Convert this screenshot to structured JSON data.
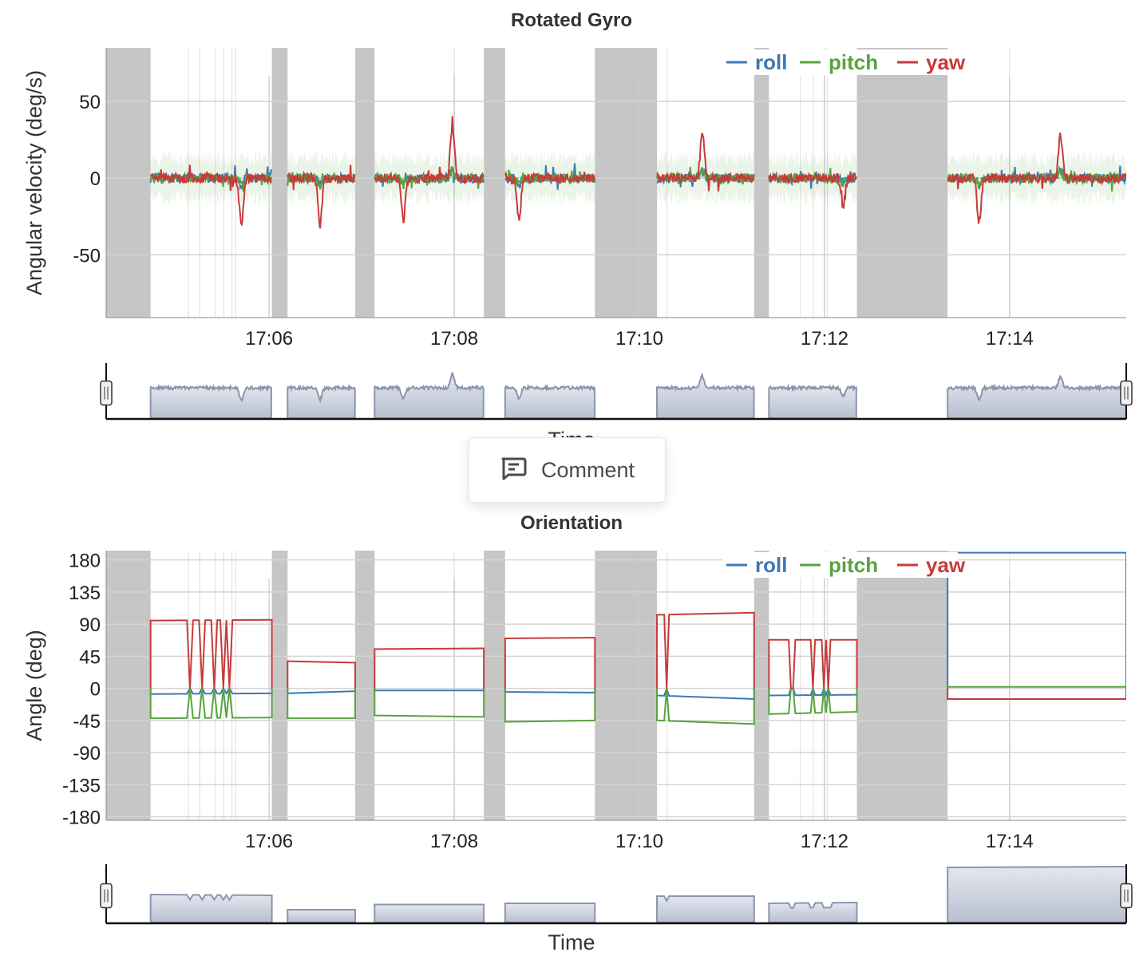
{
  "comment_button": {
    "label": "Comment",
    "icon": "comment-icon"
  },
  "colors": {
    "roll": "#3f78b5",
    "pitch": "#58a33f",
    "yaw": "#c83a3a",
    "gap": "#c6c6c6",
    "navigator": "#8a95ad"
  },
  "chart_data": [
    {
      "type": "line",
      "title": "Rotated Gyro",
      "xlabel": "Time",
      "ylabel": "Angular velocity (deg/s)",
      "x_unit": "minutes after 17:00",
      "xlim": [
        4.24,
        15.26
      ],
      "ylim": [
        -91,
        85
      ],
      "yticks": [
        50,
        0,
        -50
      ],
      "ytick_labels": [
        "50",
        "0",
        "-50"
      ],
      "xticks": [
        6,
        8,
        10,
        12,
        14
      ],
      "xtick_labels": [
        "17:06",
        "17:08",
        "17:10",
        "17:12",
        "17:14"
      ],
      "legend": {
        "position": "top-right",
        "entries": [
          "roll",
          "pitch",
          "yaw"
        ]
      },
      "gaps": [
        [
          4.24,
          4.72
        ],
        [
          6.03,
          6.2
        ],
        [
          6.93,
          7.14
        ],
        [
          8.32,
          8.55
        ],
        [
          9.52,
          10.19
        ],
        [
          11.24,
          11.4
        ],
        [
          12.35,
          13.33
        ]
      ],
      "markers": [
        5.13,
        5.25,
        5.42,
        5.51,
        5.6,
        5.64,
        7.0,
        8.0,
        10.0,
        10.3,
        11.74,
        11.88,
        12.0,
        12.03,
        14.0
      ],
      "segments": [
        [
          4.72,
          6.03
        ],
        [
          6.2,
          6.93
        ],
        [
          7.14,
          8.32
        ],
        [
          8.55,
          9.52
        ],
        [
          10.19,
          11.24
        ],
        [
          11.4,
          12.35
        ],
        [
          13.33,
          15.26
        ]
      ],
      "yaw_spikes": [
        [
          5.7,
          -30
        ],
        [
          6.55,
          -30
        ],
        [
          7.45,
          -28
        ],
        [
          7.98,
          35
        ],
        [
          8.7,
          -28
        ],
        [
          10.68,
          30
        ],
        [
          12.2,
          -20
        ],
        [
          13.67,
          -28
        ],
        [
          14.55,
          28
        ]
      ],
      "noise_amplitude": {
        "roll": 3,
        "pitch": 3,
        "yaw": 3
      },
      "envelope_amplitude": 18
    },
    {
      "type": "line",
      "title": "Orientation",
      "xlabel": "Time",
      "ylabel": "Angle (deg)",
      "x_unit": "minutes after 17:00",
      "xlim": [
        4.24,
        15.26
      ],
      "ylim": [
        -185,
        193
      ],
      "yticks": [
        180,
        135,
        90,
        45,
        0,
        -45,
        -90,
        -135,
        -180
      ],
      "ytick_labels": [
        "180",
        "135",
        "90",
        "45",
        "0",
        "-45",
        "-90",
        "-135",
        "-180"
      ],
      "xticks": [
        6,
        8,
        10,
        12,
        14
      ],
      "xtick_labels": [
        "17:06",
        "17:08",
        "17:10",
        "17:12",
        "17:14"
      ],
      "legend": {
        "position": "top-right",
        "entries": [
          "roll",
          "pitch",
          "yaw"
        ]
      },
      "gaps": [
        [
          4.24,
          4.72
        ],
        [
          6.03,
          6.2
        ],
        [
          6.93,
          7.14
        ],
        [
          8.32,
          8.55
        ],
        [
          9.52,
          10.19
        ],
        [
          11.24,
          11.4
        ],
        [
          12.35,
          13.33
        ]
      ],
      "markers": [
        5.13,
        5.25,
        5.42,
        5.51,
        5.6,
        5.64,
        7.0,
        8.0,
        10.0,
        10.3,
        11.74,
        11.88,
        12.0,
        12.03,
        14.0
      ],
      "segments": [
        {
          "start": 4.72,
          "end": 6.03,
          "roll": [
            -8,
            -7
          ],
          "pitch": [
            -42,
            -41
          ],
          "yaw": [
            95,
            96
          ],
          "dropouts": [
            5.15,
            5.28,
            5.42,
            5.5,
            5.56
          ],
          "nav": [
            60,
            58
          ]
        },
        {
          "start": 6.2,
          "end": 6.93,
          "roll": [
            -7,
            -4
          ],
          "pitch": [
            -42,
            -42
          ],
          "yaw": [
            38,
            36
          ],
          "dropouts": [],
          "nav": [
            22,
            22
          ]
        },
        {
          "start": 7.14,
          "end": 8.32,
          "roll": [
            -3,
            -3
          ],
          "pitch": [
            -38,
            -40
          ],
          "yaw": [
            55,
            56
          ],
          "dropouts": [],
          "nav": [
            35,
            35
          ]
        },
        {
          "start": 8.55,
          "end": 9.52,
          "roll": [
            -5,
            -6
          ],
          "pitch": [
            -47,
            -45
          ],
          "yaw": [
            70,
            71
          ],
          "dropouts": [],
          "nav": [
            38,
            38
          ]
        },
        {
          "start": 10.19,
          "end": 11.24,
          "roll": [
            -10,
            -15
          ],
          "pitch": [
            -45,
            -50
          ],
          "yaw": [
            103,
            106
          ],
          "dropouts": [
            10.3
          ],
          "nav": [
            56,
            56
          ]
        },
        {
          "start": 11.4,
          "end": 12.35,
          "roll": [
            -10,
            -9
          ],
          "pitch": [
            -36,
            -33
          ],
          "yaw": [
            68,
            68
          ],
          "dropouts": [
            11.65,
            11.87,
            12.0,
            12.05
          ],
          "nav": [
            38,
            40
          ]
        },
        {
          "start": 13.33,
          "end": 15.26,
          "roll": [
            190,
            190
          ],
          "pitch": [
            2,
            2
          ],
          "yaw": [
            -15,
            -15
          ],
          "dropouts": [],
          "nav": [
            128,
            130
          ]
        }
      ]
    }
  ]
}
